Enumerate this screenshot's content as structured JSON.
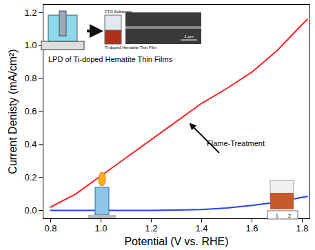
{
  "chart_data": {
    "type": "line",
    "x_label": "Potential (V vs. RHE)",
    "y_label": "Current Denisty (mA/cm²)",
    "xlim": [
      0.77,
      1.83
    ],
    "ylim": [
      -0.05,
      1.25
    ],
    "xticks": [
      0.8,
      {
        "value": 1.0,
        "label": "1.0"
      },
      1.2,
      1.4,
      1.6,
      1.8
    ],
    "yticks": [
      {
        "value": 0,
        "label": "0.0"
      },
      0.2,
      0.4,
      0.6,
      0.8,
      {
        "value": 1.0,
        "label": "1.0"
      },
      1.2
    ],
    "grid": false,
    "x": [
      0.8,
      0.9,
      1.0,
      1.1,
      1.2,
      1.3,
      1.4,
      1.5,
      1.6,
      1.7,
      1.8,
      1.82
    ],
    "series": [
      {
        "color": "#ff2020",
        "values": [
          0.02,
          0.1,
          0.21,
          0.32,
          0.43,
          0.54,
          0.65,
          0.74,
          0.84,
          0.97,
          1.13,
          1.16
        ]
      },
      {
        "color": "#1f3fff",
        "values": [
          0.0,
          0.0,
          0.0,
          0.0,
          0.0,
          0.002,
          0.005,
          0.015,
          0.03,
          0.05,
          0.08,
          0.085
        ]
      }
    ],
    "annotations": [
      "LPD of Ti-doped Hematite Thin Films",
      "Flame-Treatment",
      "FTO Substrate",
      "Ti-doped Hematite Thin Film",
      "1 μm",
      "1",
      "2"
    ]
  }
}
